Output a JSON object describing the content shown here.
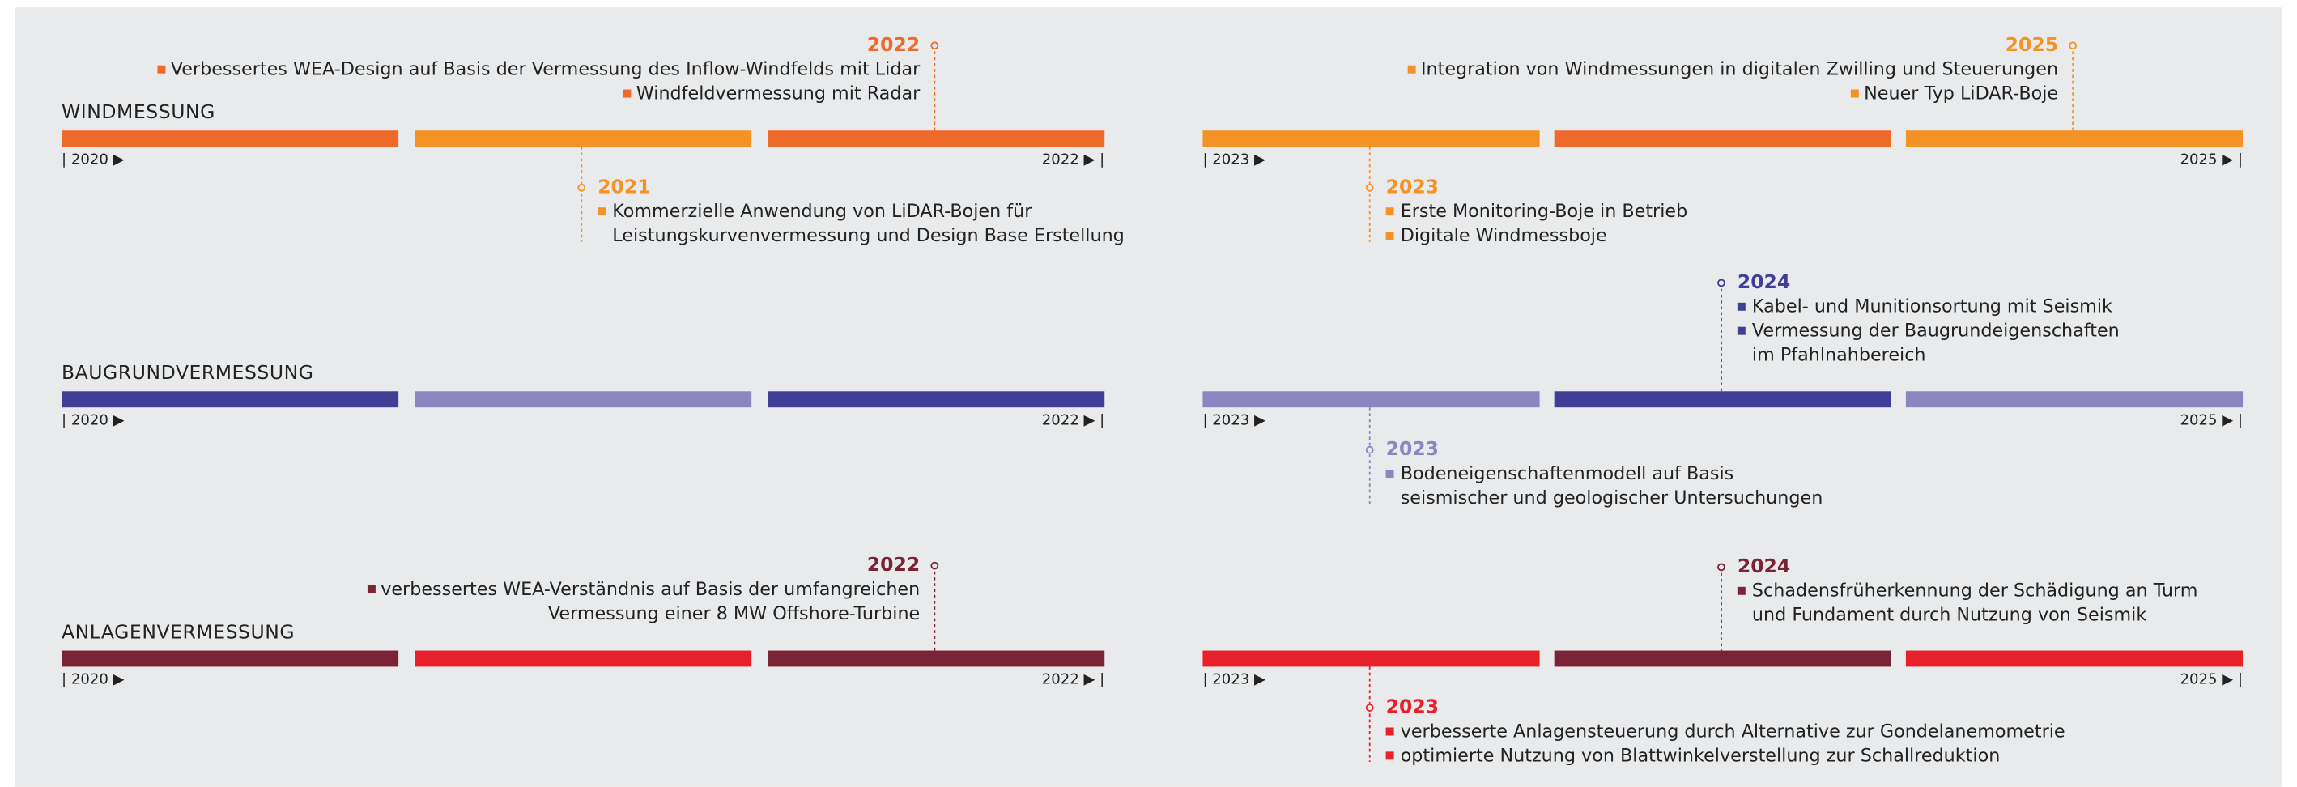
{
  "sections": [
    {
      "title": "WINDMESSUNG",
      "bar_colors": [
        "#ee6a2a",
        "#f39325",
        "#ee6a2a",
        "#f39325",
        "#ee6a2a",
        "#f39325"
      ],
      "timelines": [
        {
          "start": "| 2020 ▶",
          "end": "2022 ▶ |"
        },
        {
          "start": "| 2023 ▶",
          "end": "2025 ▶ |"
        }
      ],
      "events": [
        {
          "year": "2022",
          "color": "#ee6a2a",
          "items": [
            [
              "Verbessertes WEA-Design auf Basis der Vermessung des Inflow-Windfelds mit Lidar"
            ],
            [
              "Windfeldvermessung mit Radar"
            ]
          ]
        },
        {
          "year": "2021",
          "color": "#f39325",
          "items": [
            [
              "Kommerzielle Anwendung von LiDAR-Bojen für",
              "Leistungskurvenvermessung und Design Base Erstellung"
            ]
          ]
        },
        {
          "year": "2025",
          "color": "#f39325",
          "items": [
            [
              "Integration von Windmessungen in digitalen Zwilling und Steuerungen"
            ],
            [
              "Neuer Typ LiDAR-Boje"
            ]
          ]
        },
        {
          "year": "2023",
          "color": "#f39325",
          "items": [
            [
              "Erste Monitoring-Boje in Betrieb"
            ],
            [
              "Digitale Windmessboje"
            ]
          ]
        }
      ]
    },
    {
      "title": "BAUGRUNDVERMESSUNG",
      "bar_colors": [
        "#3e3f95",
        "#8b85c1",
        "#3e3f95",
        "#8b85c1",
        "#3e3f95",
        "#8b85c1"
      ],
      "timelines": [
        {
          "start": "| 2020 ▶",
          "end": "2022 ▶ |"
        },
        {
          "start": "| 2023 ▶",
          "end": "2025 ▶ |"
        }
      ],
      "events": [
        {
          "year": "2024",
          "color": "#3e3f95",
          "items": [
            [
              "Kabel- und Munitionsortung mit Seismik"
            ],
            [
              "Vermessung der Baugrundeigenschaften",
              "im Pfahlnahbereich"
            ]
          ]
        },
        {
          "year": "2023",
          "color": "#8b85c1",
          "items": [
            [
              "Bodeneigenschaftenmodell auf Basis",
              "seismischer und geologischer Untersuchungen"
            ]
          ]
        }
      ]
    },
    {
      "title": "ANLAGENVERMESSUNG",
      "bar_colors": [
        "#7b2336",
        "#e8202a",
        "#7b2336",
        "#e8202a",
        "#7b2336",
        "#e8202a"
      ],
      "timelines": [
        {
          "start": "| 2020 ▶",
          "end": "2022 ▶ |"
        },
        {
          "start": "| 2023 ▶",
          "end": "2025 ▶ |"
        }
      ],
      "events": [
        {
          "year": "2022",
          "color": "#7b2336",
          "items": [
            [
              "verbessertes WEA-Verständnis auf Basis der umfangreichen",
              "Vermessung einer 8 MW Offshore-Turbine"
            ]
          ]
        },
        {
          "year": "2024",
          "color": "#7b2336",
          "items": [
            [
              "Schadensfrüherkennung der Schädigung an Turm",
              "und Fundament durch Nutzung von Seismik"
            ]
          ]
        },
        {
          "year": "2023",
          "color": "#e8202a",
          "items": [
            [
              "verbesserte Anlagensteuerung durch Alternative zur Gondelanemometrie"
            ],
            [
              "optimierte Nutzung von Blattwinkelverstellung zur Schallreduktion"
            ]
          ]
        }
      ]
    }
  ]
}
